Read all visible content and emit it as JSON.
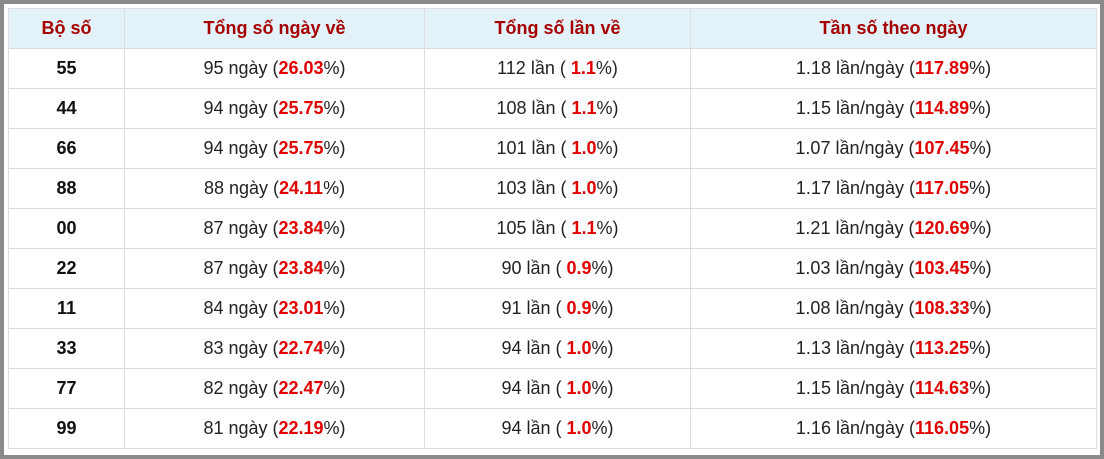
{
  "table": {
    "header": [
      "Bộ số",
      "Tổng số ngày về",
      "Tổng số lần về",
      "Tần số theo ngày"
    ],
    "rows": [
      [
        "55",
        [
          "95 ngày (",
          "26.03",
          "%)"
        ],
        [
          "112 lần ( ",
          "1.1",
          "%)"
        ],
        [
          "1.18 lần/ngày (",
          "117.89",
          "%)"
        ]
      ],
      [
        "44",
        [
          "94 ngày (",
          "25.75",
          "%)"
        ],
        [
          "108 lần ( ",
          "1.1",
          "%)"
        ],
        [
          "1.15 lần/ngày (",
          "114.89",
          "%)"
        ]
      ],
      [
        "66",
        [
          "94 ngày (",
          "25.75",
          "%)"
        ],
        [
          "101 lần ( ",
          "1.0",
          "%)"
        ],
        [
          "1.07 lần/ngày (",
          "107.45",
          "%)"
        ]
      ],
      [
        "88",
        [
          "88 ngày (",
          "24.11",
          "%)"
        ],
        [
          "103 lần ( ",
          "1.0",
          "%)"
        ],
        [
          "1.17 lần/ngày (",
          "117.05",
          "%)"
        ]
      ],
      [
        "00",
        [
          "87 ngày (",
          "23.84",
          "%)"
        ],
        [
          "105 lần ( ",
          "1.1",
          "%)"
        ],
        [
          "1.21 lần/ngày (",
          "120.69",
          "%)"
        ]
      ],
      [
        "22",
        [
          "87 ngày (",
          "23.84",
          "%)"
        ],
        [
          "90 lần ( ",
          "0.9",
          "%)"
        ],
        [
          "1.03 lần/ngày (",
          "103.45",
          "%)"
        ]
      ],
      [
        "11",
        [
          "84 ngày (",
          "23.01",
          "%)"
        ],
        [
          "91 lần ( ",
          "0.9",
          "%)"
        ],
        [
          "1.08 lần/ngày (",
          "108.33",
          "%)"
        ]
      ],
      [
        "33",
        [
          "83 ngày (",
          "22.74",
          "%)"
        ],
        [
          "94 lần ( ",
          "1.0",
          "%)"
        ],
        [
          "1.13 lần/ngày (",
          "113.25",
          "%)"
        ]
      ],
      [
        "77",
        [
          "82 ngày (",
          "22.47",
          "%)"
        ],
        [
          "94 lần ( ",
          "1.0",
          "%)"
        ],
        [
          "1.15 lần/ngày (",
          "114.63",
          "%)"
        ]
      ],
      [
        "99",
        [
          "81 ngày (",
          "22.19",
          "%)"
        ],
        [
          "94 lần ( ",
          "1.0",
          "%)"
        ],
        [
          "1.16 lần/ngày (",
          "116.05",
          "%)"
        ]
      ]
    ]
  }
}
